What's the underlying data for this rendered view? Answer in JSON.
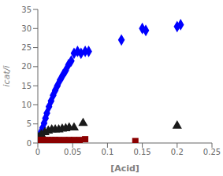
{
  "chart_data": {
    "type": "scatter",
    "xlabel": "[Acid]",
    "ylabel": "icat/i",
    "xlim": [
      0,
      0.25
    ],
    "ylim": [
      0,
      35
    ],
    "xticks": [
      0,
      0.05,
      0.1,
      0.15,
      0.2,
      0.25
    ],
    "yticks": [
      0,
      5,
      10,
      15,
      20,
      25,
      30,
      35
    ],
    "grid": false,
    "series": [
      {
        "color": "#0000FF",
        "marker": "diamond",
        "x": [
          0.001,
          0.003,
          0.005,
          0.007,
          0.009,
          0.011,
          0.013,
          0.016,
          0.019,
          0.022,
          0.025,
          0.028,
          0.032,
          0.036,
          0.04,
          0.044,
          0.048,
          0.052,
          0.057,
          0.062,
          0.068,
          0.073,
          0.12,
          0.15,
          0.155,
          0.2,
          0.205
        ],
        "values": [
          1.0,
          2.0,
          3.0,
          4.0,
          5.2,
          6.5,
          7.8,
          9.5,
          11.0,
          12.5,
          13.8,
          15.0,
          16.5,
          17.8,
          19.0,
          20.5,
          21.5,
          23.5,
          24.0,
          23.5,
          24.0,
          24.0,
          27.0,
          30.0,
          29.5,
          30.5,
          31.0
        ]
      },
      {
        "color": "#1a1a1a",
        "marker": "triangle",
        "x": [
          0.001,
          0.005,
          0.01,
          0.015,
          0.02,
          0.025,
          0.03,
          0.035,
          0.04,
          0.045,
          0.052,
          0.065,
          0.2
        ],
        "values": [
          1.5,
          2.2,
          2.8,
          3.2,
          3.5,
          3.5,
          3.5,
          3.7,
          3.8,
          4.0,
          4.0,
          5.2,
          4.5
        ]
      },
      {
        "color": "#8B0000",
        "marker": "square",
        "x": [
          0.0,
          0.003,
          0.006,
          0.01,
          0.015,
          0.02,
          0.025,
          0.03,
          0.038,
          0.045,
          0.052,
          0.06,
          0.068,
          0.14
        ],
        "values": [
          0.8,
          0.8,
          0.8,
          0.8,
          0.8,
          0.8,
          0.8,
          0.8,
          0.8,
          0.8,
          0.8,
          0.8,
          1.0,
          0.5
        ]
      }
    ]
  }
}
